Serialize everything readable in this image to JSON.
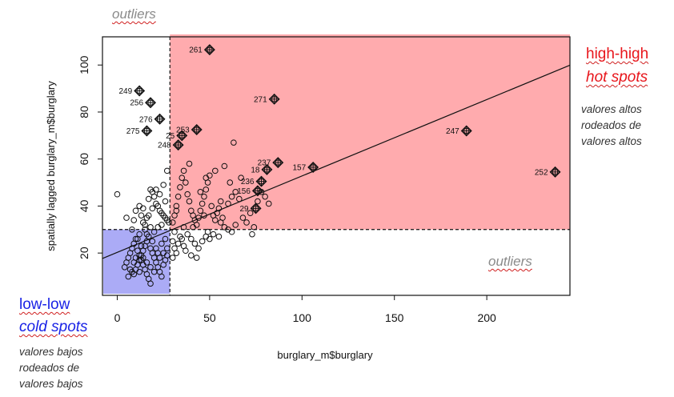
{
  "chart_data": {
    "type": "scatter",
    "xlabel": "burglary_m$burglary",
    "ylabel": "spatially lagged burglary_m$burglary",
    "xlim": [
      -8,
      245
    ],
    "ylim": [
      2,
      112
    ],
    "xticks": [
      0,
      50,
      100,
      150,
      200
    ],
    "yticks": [
      20,
      40,
      60,
      80,
      100
    ],
    "mean_x": 28.5,
    "mean_y": 30,
    "regression_line": {
      "intercept": 20.3,
      "slope": 0.325
    },
    "quadrants": {
      "high_high": {
        "fill": "#ff8a8f",
        "opacity": 0.72
      },
      "low_low": {
        "fill": "#8a8af2",
        "opacity": 0.72
      }
    },
    "labeled_points": [
      {
        "label": "261",
        "x": 50,
        "y": 106.5
      },
      {
        "label": "249",
        "x": 12,
        "y": 89
      },
      {
        "label": "256",
        "x": 18,
        "y": 84
      },
      {
        "label": "271",
        "x": 85,
        "y": 85.5
      },
      {
        "label": "276",
        "x": 23,
        "y": 77
      },
      {
        "label": "275",
        "x": 16,
        "y": 72
      },
      {
        "label": "253",
        "x": 43,
        "y": 72.5
      },
      {
        "label": "25",
        "x": 35,
        "y": 70
      },
      {
        "label": "248",
        "x": 33,
        "y": 66
      },
      {
        "label": "247",
        "x": 189,
        "y": 72
      },
      {
        "label": "237",
        "x": 87,
        "y": 58.5
      },
      {
        "label": "18",
        "x": 81,
        "y": 55.5
      },
      {
        "label": "157",
        "x": 106,
        "y": 56.5
      },
      {
        "label": "252",
        "x": 237,
        "y": 54.5
      },
      {
        "label": "236",
        "x": 78,
        "y": 50.5
      },
      {
        "label": "156",
        "x": 76,
        "y": 46.5
      },
      {
        "label": "29",
        "x": 75,
        "y": 39
      }
    ],
    "points": [
      [
        0,
        45
      ],
      [
        5,
        35
      ],
      [
        8,
        30
      ],
      [
        9,
        34
      ],
      [
        10,
        38
      ],
      [
        12,
        40
      ],
      [
        13,
        36
      ],
      [
        14,
        33
      ],
      [
        15,
        30
      ],
      [
        16,
        28
      ],
      [
        17,
        43
      ],
      [
        18,
        47
      ],
      [
        19,
        46
      ],
      [
        20,
        44
      ],
      [
        21,
        41
      ],
      [
        22,
        40
      ],
      [
        23,
        38
      ],
      [
        24,
        37
      ],
      [
        25,
        36
      ],
      [
        26,
        35
      ],
      [
        27,
        34
      ],
      [
        28,
        33
      ],
      [
        26,
        42
      ],
      [
        24,
        32
      ],
      [
        22,
        31
      ],
      [
        20,
        29
      ],
      [
        18,
        31
      ],
      [
        16,
        35
      ],
      [
        14,
        39
      ],
      [
        12,
        28
      ],
      [
        11,
        26
      ],
      [
        27,
        55
      ],
      [
        25,
        49
      ],
      [
        21,
        47
      ],
      [
        19,
        39
      ],
      [
        23,
        45
      ],
      [
        17,
        36
      ],
      [
        15,
        32
      ],
      [
        4,
        14
      ],
      [
        5,
        16
      ],
      [
        6,
        18
      ],
      [
        7,
        20
      ],
      [
        8,
        22
      ],
      [
        9,
        24
      ],
      [
        10,
        26
      ],
      [
        11,
        21
      ],
      [
        12,
        19
      ],
      [
        13,
        17
      ],
      [
        14,
        15
      ],
      [
        15,
        13
      ],
      [
        16,
        11
      ],
      [
        17,
        9
      ],
      [
        18,
        7
      ],
      [
        8,
        12
      ],
      [
        9,
        11
      ],
      [
        10,
        13
      ],
      [
        11,
        15
      ],
      [
        12,
        17
      ],
      [
        13,
        19
      ],
      [
        14,
        21
      ],
      [
        15,
        23
      ],
      [
        16,
        25
      ],
      [
        17,
        27
      ],
      [
        18,
        22
      ],
      [
        19,
        20
      ],
      [
        20,
        18
      ],
      [
        21,
        16
      ],
      [
        22,
        14
      ],
      [
        23,
        12
      ],
      [
        24,
        10
      ],
      [
        25,
        15
      ],
      [
        26,
        17
      ],
      [
        27,
        19
      ],
      [
        6,
        10
      ],
      [
        7,
        13
      ],
      [
        9,
        16
      ],
      [
        12,
        12
      ],
      [
        14,
        18
      ],
      [
        16,
        16
      ],
      [
        18,
        14
      ],
      [
        20,
        12
      ],
      [
        22,
        20
      ],
      [
        24,
        24
      ],
      [
        26,
        26
      ],
      [
        10,
        18
      ],
      [
        13,
        23
      ],
      [
        19,
        25
      ],
      [
        21,
        22
      ],
      [
        23,
        18
      ],
      [
        25,
        20
      ],
      [
        27,
        22
      ],
      [
        30,
        25
      ],
      [
        31,
        22
      ],
      [
        32,
        20
      ],
      [
        33,
        24
      ],
      [
        34,
        27
      ],
      [
        35,
        26
      ],
      [
        36,
        23
      ],
      [
        37,
        21
      ],
      [
        38,
        28
      ],
      [
        40,
        26
      ],
      [
        42,
        24
      ],
      [
        44,
        22
      ],
      [
        46,
        25
      ],
      [
        48,
        27
      ],
      [
        50,
        26
      ],
      [
        52,
        28
      ],
      [
        40,
        19
      ],
      [
        43,
        18
      ],
      [
        49,
        29
      ],
      [
        55,
        27
      ],
      [
        58,
        31
      ],
      [
        60,
        30
      ],
      [
        62,
        29
      ],
      [
        64,
        32
      ],
      [
        31,
        29
      ],
      [
        30,
        18
      ],
      [
        30,
        33
      ],
      [
        31,
        36
      ],
      [
        32,
        40
      ],
      [
        33,
        44
      ],
      [
        34,
        48
      ],
      [
        35,
        52
      ],
      [
        36,
        55
      ],
      [
        37,
        50
      ],
      [
        38,
        45
      ],
      [
        39,
        42
      ],
      [
        40,
        38
      ],
      [
        41,
        36
      ],
      [
        42,
        34
      ],
      [
        43,
        32
      ],
      [
        44,
        35
      ],
      [
        45,
        38
      ],
      [
        46,
        41
      ],
      [
        47,
        44
      ],
      [
        48,
        47
      ],
      [
        49,
        50
      ],
      [
        50,
        53
      ],
      [
        51,
        40
      ],
      [
        52,
        36
      ],
      [
        53,
        34
      ],
      [
        54,
        37
      ],
      [
        55,
        39
      ],
      [
        56,
        33
      ],
      [
        57,
        35
      ],
      [
        58,
        57
      ],
      [
        60,
        41
      ],
      [
        62,
        44
      ],
      [
        64,
        46
      ],
      [
        66,
        43
      ],
      [
        68,
        35
      ],
      [
        70,
        33
      ],
      [
        72,
        37
      ],
      [
        74,
        31
      ],
      [
        76,
        42
      ],
      [
        78,
        46
      ],
      [
        80,
        44
      ],
      [
        82,
        41
      ],
      [
        63,
        67
      ],
      [
        53,
        55
      ],
      [
        45,
        46
      ],
      [
        39,
        58
      ],
      [
        36,
        31
      ],
      [
        48,
        52
      ],
      [
        56,
        42
      ],
      [
        61,
        50
      ],
      [
        67,
        52
      ],
      [
        32,
        38
      ],
      [
        41,
        31
      ],
      [
        47,
        36
      ],
      [
        73,
        28
      ]
    ]
  },
  "annotations": {
    "outliers_top": "outliers",
    "outliers_bottom": "outliers",
    "high_high": "high-high",
    "hot_spots": "hot spots",
    "hot_note": [
      "valores altos",
      "rodeados de",
      "valores altos"
    ],
    "low_low": "low-low",
    "cold_spots": "cold spots",
    "cold_note": [
      "valores bajos",
      "rodeados de",
      "valores bajos"
    ]
  },
  "colors": {
    "hot": "#e8161c",
    "cold": "#1a23e6",
    "outliers": "#8a8a8a"
  }
}
